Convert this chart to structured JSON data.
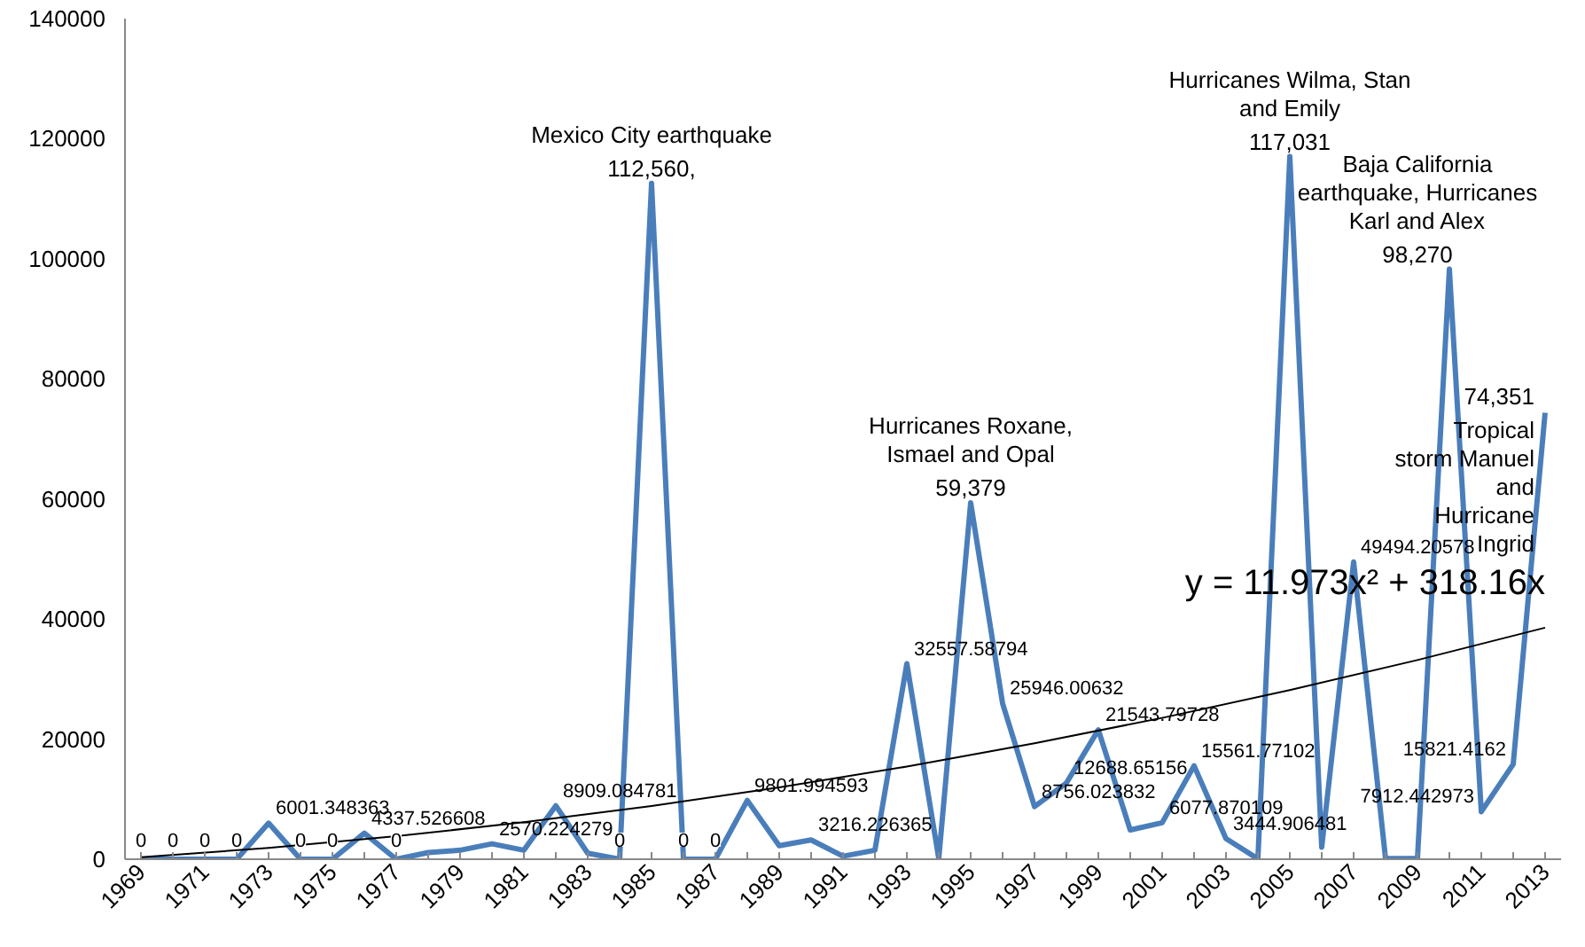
{
  "chart_data": {
    "type": "line",
    "x": [
      1969,
      1970,
      1971,
      1972,
      1973,
      1974,
      1975,
      1976,
      1977,
      1978,
      1979,
      1980,
      1981,
      1982,
      1983,
      1984,
      1985,
      1986,
      1987,
      1988,
      1989,
      1990,
      1991,
      1992,
      1993,
      1994,
      1995,
      1996,
      1997,
      1998,
      1999,
      2000,
      2001,
      2002,
      2003,
      2004,
      2005,
      2006,
      2007,
      2008,
      2009,
      2010,
      2011,
      2012,
      2013
    ],
    "series": [
      {
        "color": "#4a7ebb",
        "values": [
          0,
          0,
          0,
          0,
          6001.348363,
          0,
          0,
          4337.526608,
          0,
          1100,
          1500,
          2570.224279,
          1500,
          8909.084781,
          1000,
          0,
          112560,
          0,
          0,
          9801.994593,
          2258,
          3216.226365,
          500,
          1500,
          32557.58794,
          100,
          59379,
          25946.00632,
          8756.023832,
          12688.65156,
          21543.79728,
          4868,
          6077.870109,
          15561.77102,
          3444.906481,
          57,
          117031,
          2000,
          49494.20578,
          100,
          100,
          98270,
          7912.442973,
          15821.4162,
          74351
        ],
        "value_labels": [
          "0",
          "0",
          "0",
          "0",
          "6001.348363",
          "0",
          "0",
          "4337.526608",
          "0",
          null,
          null,
          "2570.224279",
          null,
          "8909.084781",
          null,
          "0",
          "112,560,",
          "0",
          "0",
          "9801.994593",
          null,
          "3216.226365",
          null,
          null,
          "32557.58794",
          null,
          "59,379",
          "25946.00632",
          "8756.023832",
          "12688.65156",
          "21543.79728",
          null,
          "6077.870109",
          "15561.77102",
          "3444.906481",
          null,
          "117,031",
          null,
          "49494.20578",
          null,
          null,
          "98,270",
          "7912.442973",
          "15821.4162",
          "74,351"
        ]
      },
      {
        "type": "line",
        "color": "#000000",
        "x": [
          1969,
          1973,
          1977,
          1981,
          1985,
          1989,
          1993,
          1997,
          2001,
          2005,
          2009,
          2013
        ],
        "values": [
          330,
          1890,
          3833,
          6160,
          8869,
          11962,
          15437,
          19296,
          23538,
          28163,
          33171,
          38563
        ]
      }
    ],
    "ylim": [
      0,
      140000
    ],
    "yticks": [
      0,
      20000,
      40000,
      60000,
      80000,
      100000,
      120000,
      140000
    ],
    "xlim": [
      1968.5,
      2013.5
    ],
    "xticks": [
      1969,
      {
        "value": 1970,
        "label": null
      },
      1971,
      {
        "value": 1972,
        "label": null
      },
      1973,
      {
        "value": 1974,
        "label": null
      },
      1975,
      {
        "value": 1976,
        "label": null
      },
      1977,
      {
        "value": 1978,
        "label": null
      },
      1979,
      {
        "value": 1980,
        "label": null
      },
      1981,
      {
        "value": 1982,
        "label": null
      },
      1983,
      {
        "value": 1984,
        "label": null
      },
      1985,
      {
        "value": 1986,
        "label": null
      },
      1987,
      {
        "value": 1988,
        "label": null
      },
      1989,
      {
        "value": 1990,
        "label": null
      },
      1991,
      {
        "value": 1992,
        "label": null
      },
      1993,
      {
        "value": 1994,
        "label": null
      },
      1995,
      {
        "value": 1996,
        "label": null
      },
      1997,
      {
        "value": 1998,
        "label": null
      },
      1999,
      {
        "value": 2000,
        "label": null
      },
      2001,
      {
        "value": 2002,
        "label": null
      },
      2003,
      {
        "value": 2004,
        "label": null
      },
      2005,
      {
        "value": 2006,
        "label": null
      },
      2007,
      {
        "value": 2008,
        "label": null
      },
      2009,
      {
        "value": 2010,
        "label": null
      },
      2011,
      {
        "value": 2012,
        "label": null
      },
      2013
    ],
    "annotations": [
      {
        "text": "Mexico City earthquake",
        "x": 1985,
        "y": 112560
      },
      {
        "text": "Hurricanes Roxane, Ismael and Opal",
        "x": 1995,
        "y": 59379
      },
      {
        "text": "Hurricanes Wilma, Stan and Emily",
        "x": 2005,
        "y": 117031
      },
      {
        "text": "Baja California earthquake, Hurricanes Karl and Alex",
        "x": 2010,
        "y": 98270
      },
      {
        "text": "Tropical storm Manuel and Hurricane Ingrid",
        "x": 2013,
        "y": 74351
      },
      {
        "text": "y = 11.973x² + 318.16x",
        "x": 2013,
        "y": 38563
      }
    ],
    "grid": false,
    "marker": "none",
    "line_style": "solid"
  }
}
